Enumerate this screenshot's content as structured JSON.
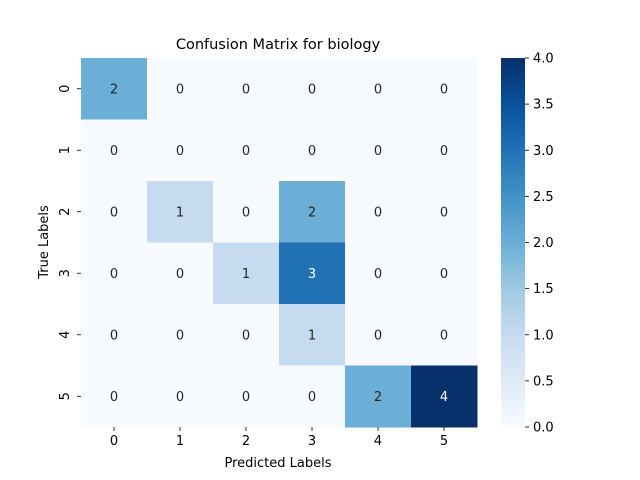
{
  "chart_data": {
    "type": "heatmap",
    "title": "Confusion Matrix for biology",
    "xlabel": "Predicted Labels",
    "ylabel": "True Labels",
    "x_categories": [
      "0",
      "1",
      "2",
      "3",
      "4",
      "5"
    ],
    "y_categories": [
      "0",
      "1",
      "2",
      "3",
      "4",
      "5"
    ],
    "values": [
      [
        2,
        0,
        0,
        0,
        0,
        0
      ],
      [
        0,
        0,
        0,
        0,
        0,
        0
      ],
      [
        0,
        1,
        0,
        2,
        0,
        0
      ],
      [
        0,
        0,
        1,
        3,
        0,
        0
      ],
      [
        0,
        0,
        0,
        1,
        0,
        0
      ],
      [
        0,
        0,
        0,
        0,
        2,
        4
      ]
    ],
    "colorbar": {
      "min": 0.0,
      "max": 4.0,
      "ticks": [
        "0.0",
        "0.5",
        "1.0",
        "1.5",
        "2.0",
        "2.5",
        "3.0",
        "3.5",
        "4.0"
      ]
    },
    "colormap": "Blues",
    "annotations": true
  }
}
